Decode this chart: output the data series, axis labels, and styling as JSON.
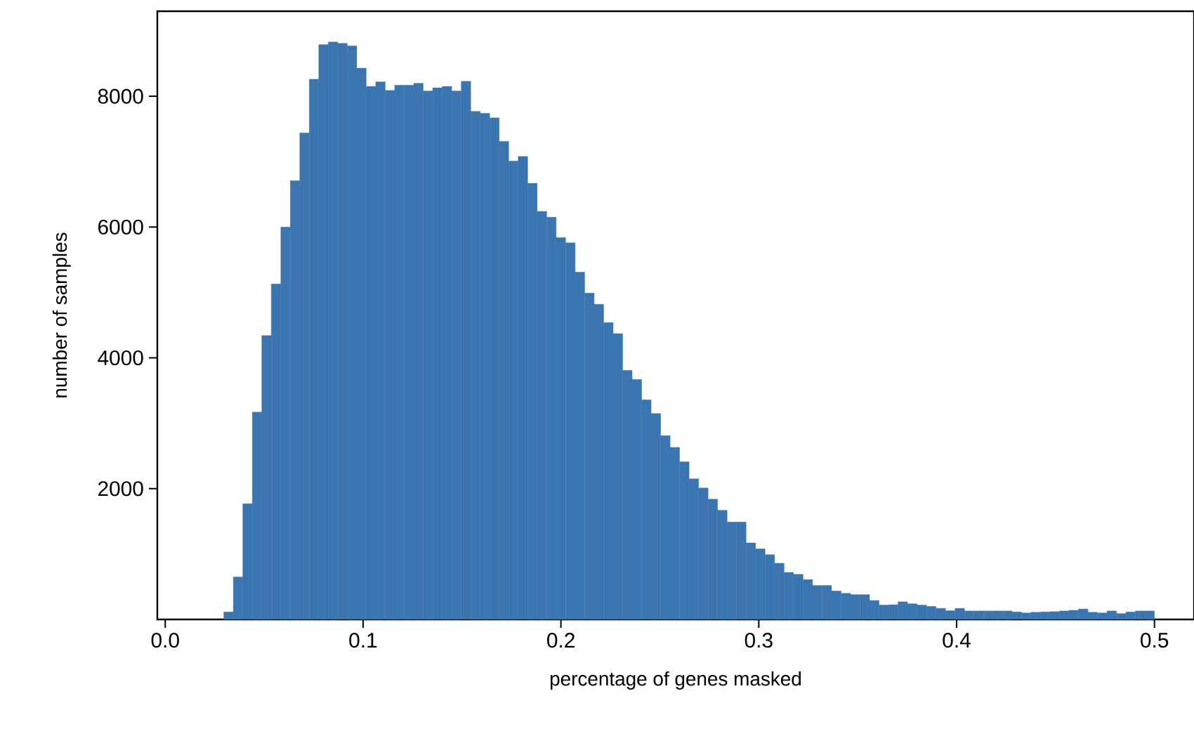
{
  "chart_data": {
    "type": "histogram",
    "xlabel": "percentage of genes masked",
    "ylabel": "number of samples",
    "color": "#3b75af",
    "bins": [
      0.0296,
      0.0344,
      0.0392,
      0.044,
      0.0488,
      0.0536,
      0.0584,
      0.0632,
      0.068,
      0.0728,
      0.0776,
      0.0824,
      0.0872,
      0.092,
      0.0968,
      0.1016,
      0.1064,
      0.1112,
      0.116,
      0.1208,
      0.1256,
      0.1304,
      0.1352,
      0.14,
      0.1448,
      0.1496,
      0.1544,
      0.1592,
      0.164,
      0.1688,
      0.1736,
      0.1784,
      0.1832,
      0.188,
      0.1928,
      0.1976,
      0.2024,
      0.2072,
      0.212,
      0.2168,
      0.2216,
      0.2264,
      0.2312,
      0.236,
      0.2408,
      0.2456,
      0.2504,
      0.2552,
      0.26,
      0.2648,
      0.2696,
      0.2744,
      0.2792,
      0.284,
      0.2888,
      0.2936,
      0.2984,
      0.3032,
      0.308,
      0.3128,
      0.3176,
      0.3224,
      0.3272,
      0.332,
      0.3368,
      0.3416,
      0.3464,
      0.3512,
      0.356,
      0.3608,
      0.3656,
      0.3704,
      0.3752,
      0.38,
      0.3848,
      0.3896,
      0.3944,
      0.3992,
      0.404,
      0.4088,
      0.4136,
      0.4184,
      0.4232,
      0.428,
      0.4328,
      0.4376,
      0.4424,
      0.4472,
      0.452,
      0.4568,
      0.4616,
      0.4664,
      0.4712,
      0.476,
      0.4808,
      0.4856,
      0.4904,
      0.4952,
      0.5
    ],
    "values": [
      115,
      650,
      1770,
      3170,
      4340,
      5130,
      6000,
      6710,
      7440,
      8260,
      8790,
      8830,
      8810,
      8770,
      8430,
      8150,
      8220,
      8090,
      8170,
      8170,
      8200,
      8080,
      8130,
      8150,
      8080,
      8230,
      7770,
      7740,
      7670,
      7310,
      7010,
      7080,
      6670,
      6240,
      6150,
      5840,
      5760,
      5310,
      4990,
      4820,
      4540,
      4370,
      3810,
      3670,
      3360,
      3150,
      2810,
      2630,
      2410,
      2150,
      2010,
      1840,
      1670,
      1490,
      1490,
      1170,
      1080,
      990,
      860,
      720,
      690,
      610,
      520,
      520,
      435,
      400,
      380,
      380,
      290,
      220,
      225,
      270,
      240,
      220,
      200,
      170,
      135,
      170,
      130,
      130,
      130,
      130,
      130,
      115,
      100,
      110,
      115,
      120,
      130,
      140,
      160,
      110,
      100,
      130,
      90,
      115,
      130,
      130
    ],
    "xlim": [
      -0.004,
      0.52
    ],
    "ylim": [
      0,
      9300
    ],
    "xticks": [
      {
        "value": 0,
        "label": "0.0"
      },
      0.1,
      0.2,
      0.3,
      0.4,
      0.5
    ],
    "yticks": [
      2000,
      4000,
      6000,
      8000
    ],
    "grid": false
  }
}
